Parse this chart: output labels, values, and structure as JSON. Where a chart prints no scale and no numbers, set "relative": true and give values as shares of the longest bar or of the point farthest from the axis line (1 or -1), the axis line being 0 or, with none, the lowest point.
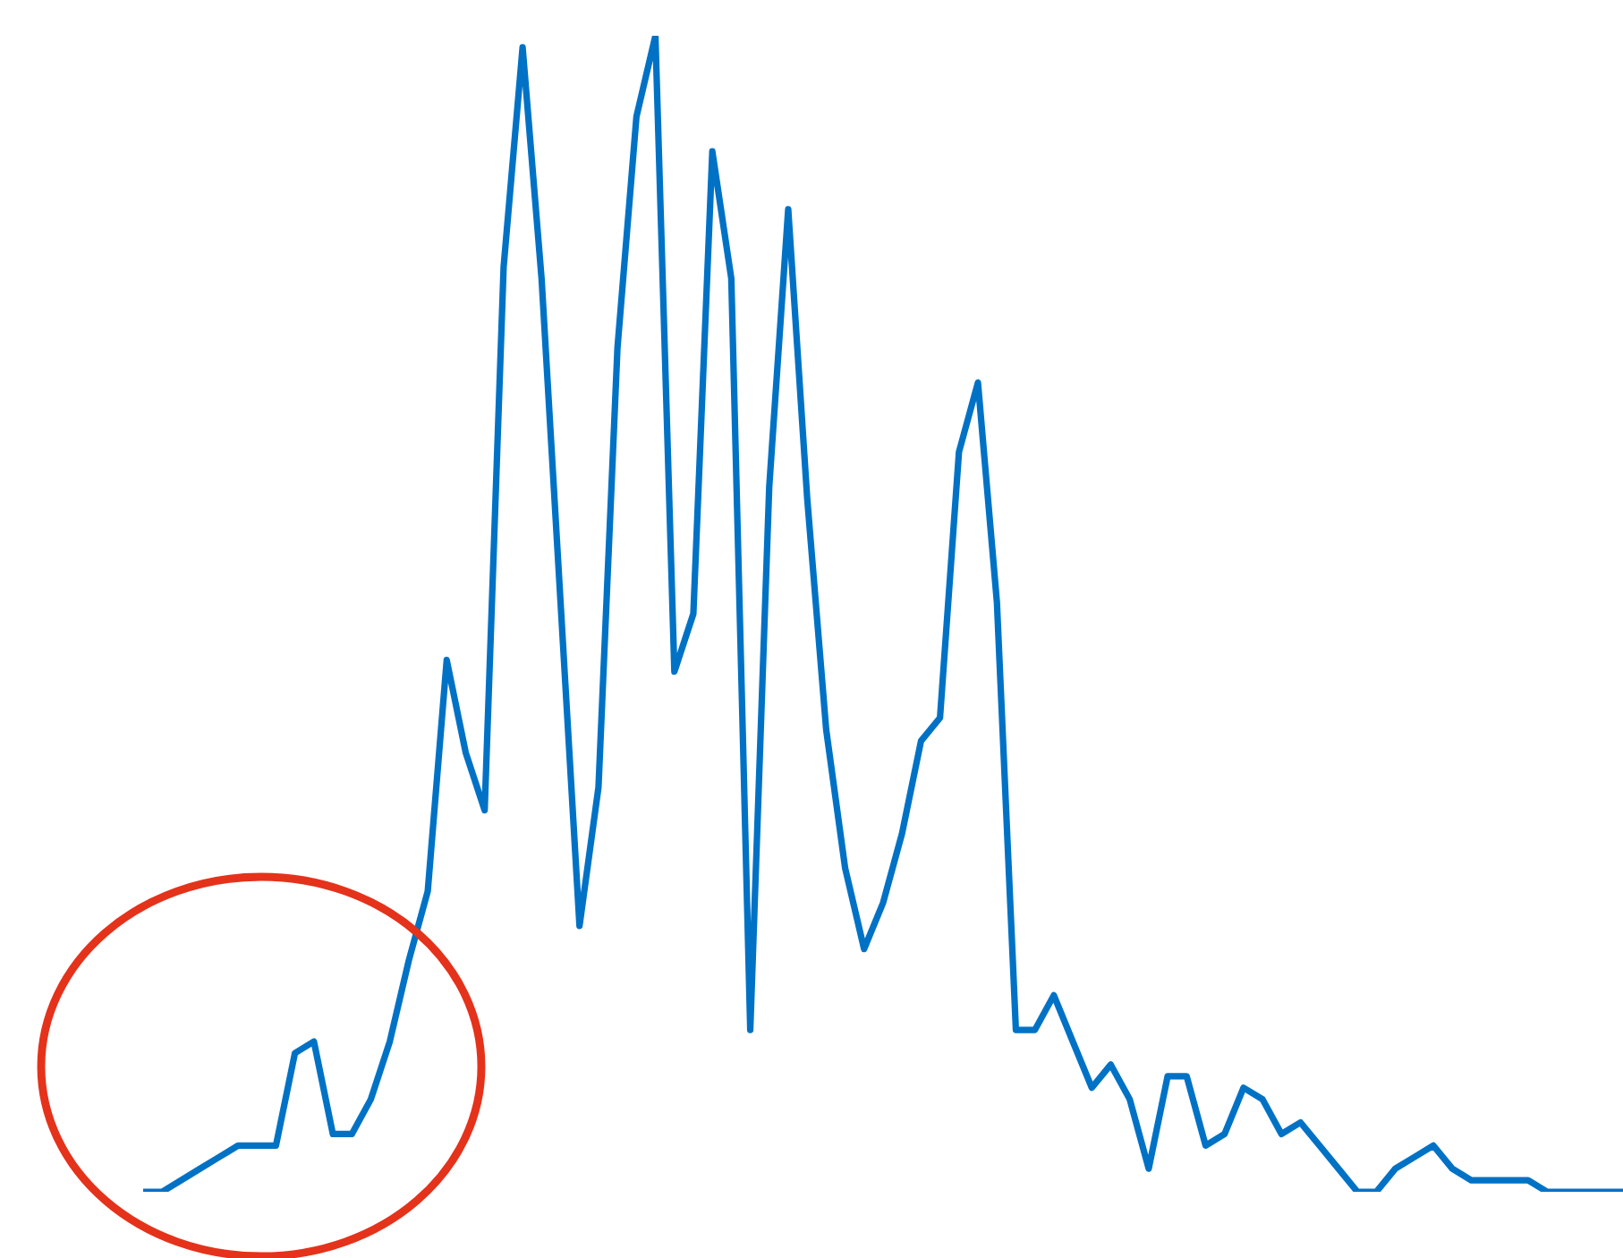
{
  "chart_data": {
    "type": "line",
    "relative": true,
    "grid": false,
    "marker": "none",
    "line_style": "solid",
    "categories": [
      null,
      null,
      null,
      null,
      null,
      null,
      null,
      null,
      null,
      null,
      null,
      null,
      null,
      null,
      null,
      null,
      null,
      null,
      null,
      null,
      null,
      null,
      null,
      null,
      null,
      null,
      null,
      null,
      null,
      null,
      null,
      null,
      null,
      null,
      null,
      null,
      null,
      null,
      null,
      null,
      null,
      null,
      null,
      null,
      null,
      null,
      null,
      null,
      null,
      null,
      null,
      null,
      null,
      null,
      null,
      null,
      null,
      null,
      null,
      null,
      null,
      null,
      null,
      null,
      null,
      null,
      null,
      null,
      null,
      null,
      null,
      null,
      null,
      null,
      null,
      null,
      null,
      null,
      null
    ],
    "series": [
      {
        "color": "#0072c6",
        "values": [
          0.0,
          0.0,
          0.01,
          0.02,
          0.03,
          0.04,
          0.04,
          0.04,
          0.12,
          0.13,
          0.05,
          0.05,
          0.08,
          0.13,
          0.2,
          0.26,
          0.46,
          0.38,
          0.33,
          0.8,
          0.99,
          0.79,
          0.51,
          0.23,
          0.35,
          0.73,
          0.93,
          1.0,
          0.45,
          0.5,
          0.9,
          0.79,
          0.14,
          0.61,
          0.85,
          0.6,
          0.4,
          0.28,
          0.21,
          0.25,
          0.31,
          0.39,
          0.41,
          0.64,
          0.7,
          0.51,
          0.14,
          0.14,
          0.17,
          0.13,
          0.09,
          0.11,
          0.08,
          0.02,
          0.1,
          0.1,
          0.04,
          0.05,
          0.09,
          0.08,
          0.05,
          0.06,
          0.04,
          0.02,
          0.0,
          0.0,
          0.02,
          0.03,
          0.04,
          0.02,
          0.01,
          0.01,
          0.01,
          0.01,
          0.0,
          0.0,
          0.0,
          0.0,
          0.0
        ]
      }
    ]
  }
}
